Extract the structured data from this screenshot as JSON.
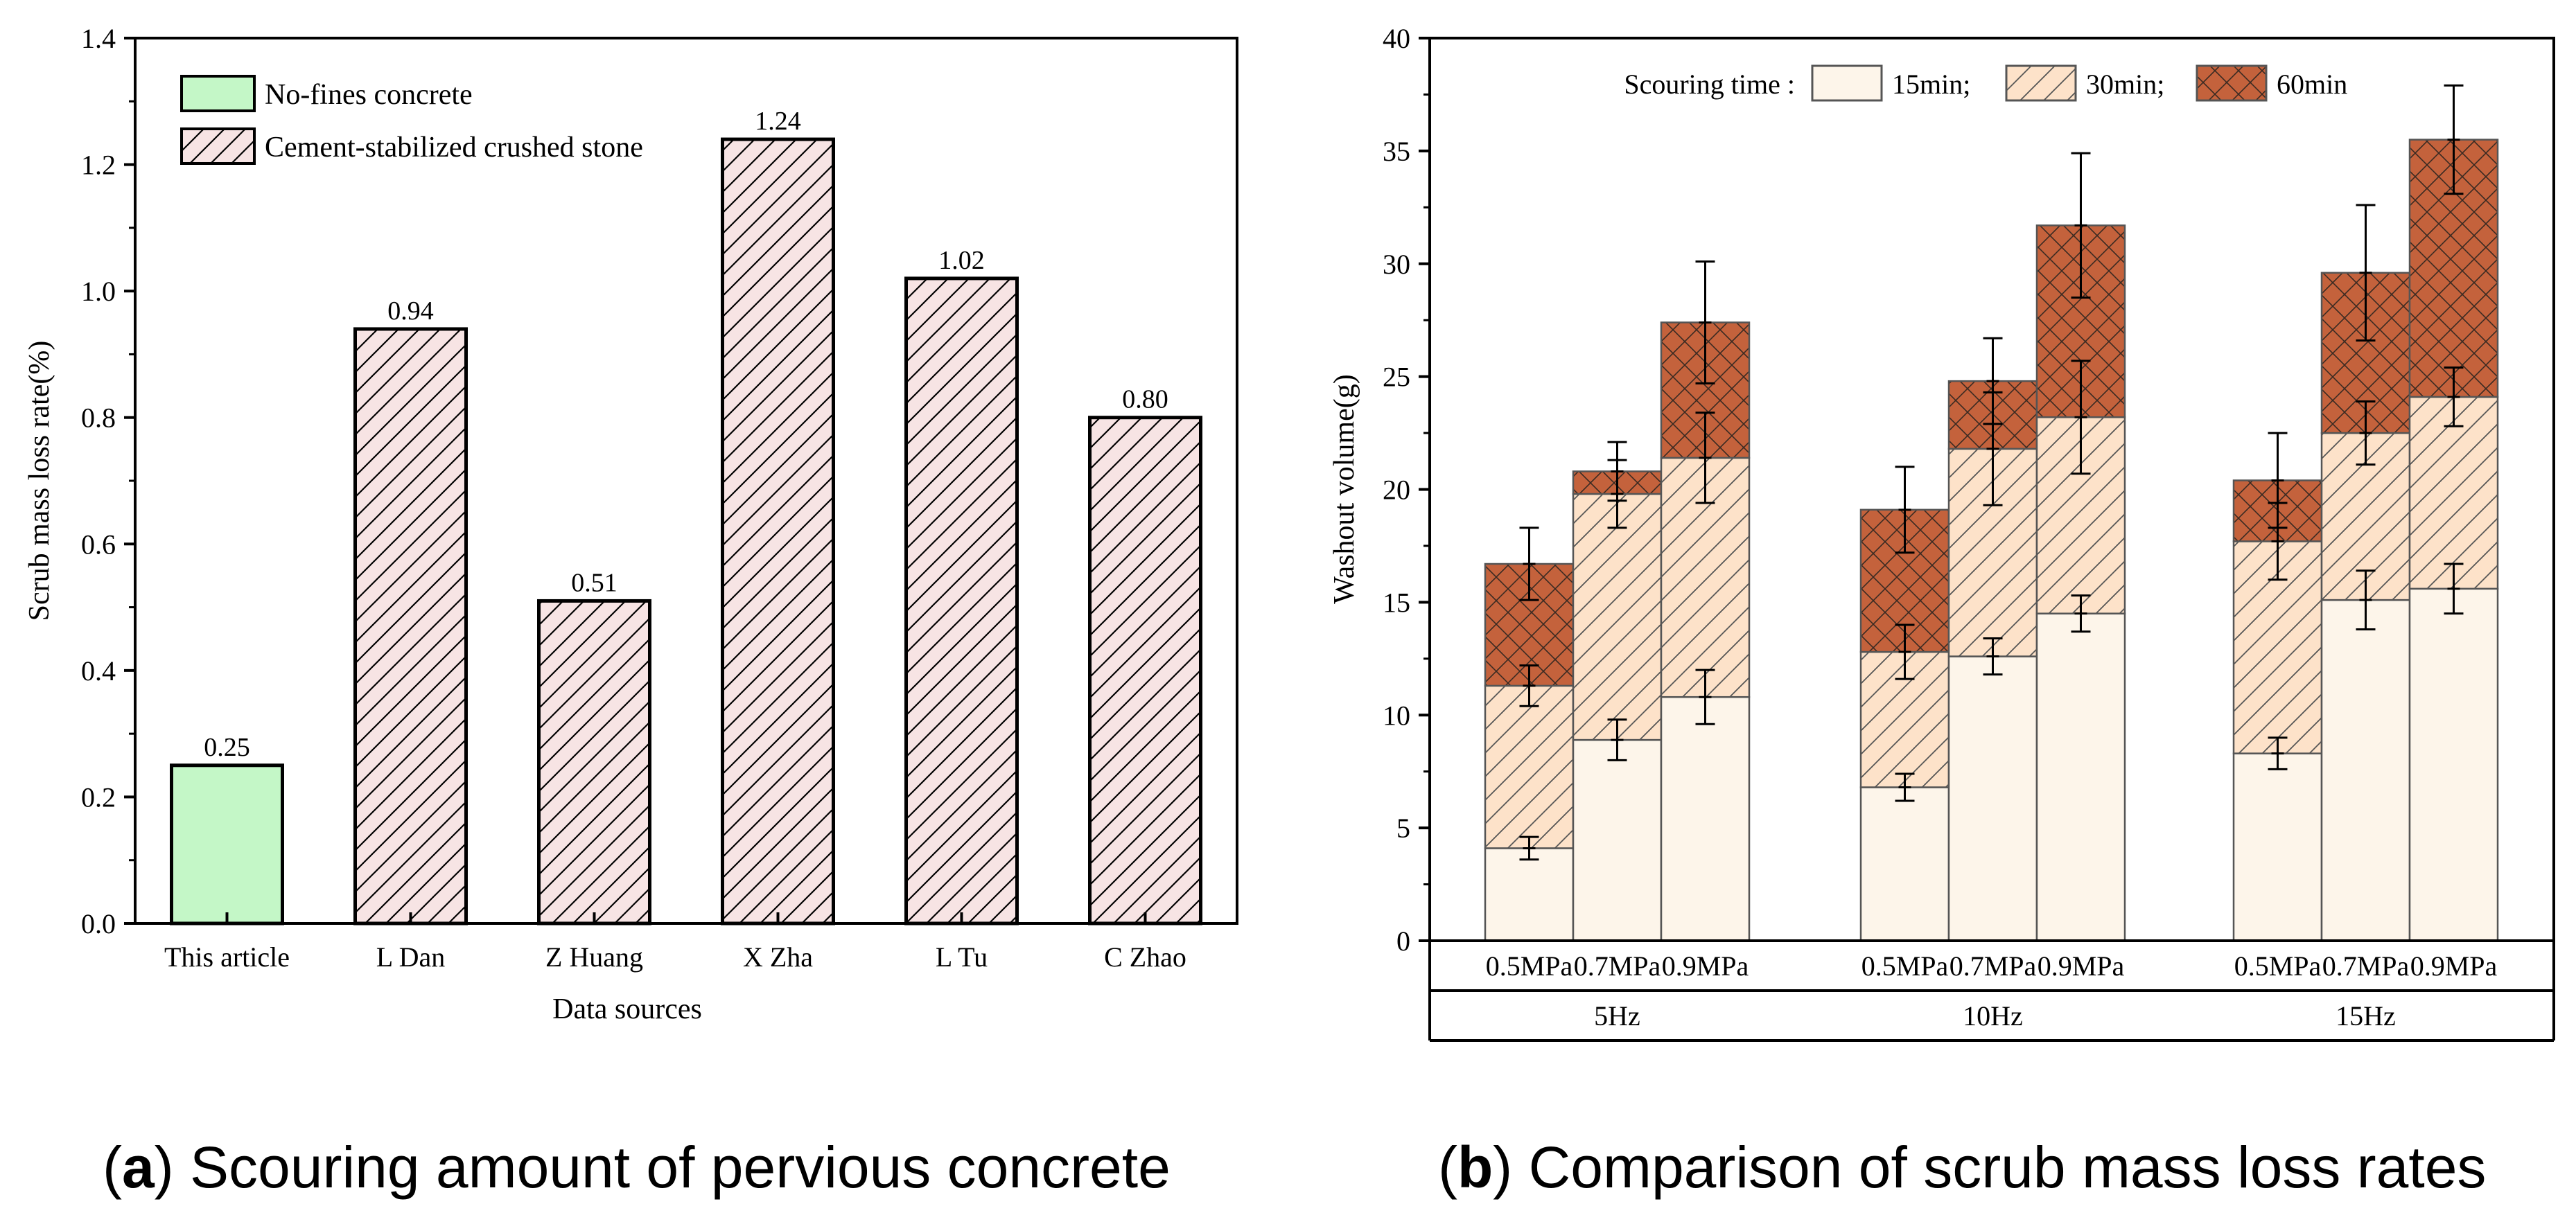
{
  "chart_data": [
    {
      "type": "bar",
      "title": "",
      "xlabel": "Data sources",
      "ylabel": "Scrub mass loss rate(%)",
      "ylim": [
        0,
        1.4
      ],
      "yticks": [
        "0.0",
        "0.2",
        "0.4",
        "0.6",
        "0.8",
        "1.0",
        "1.2",
        "1.4"
      ],
      "categories": [
        "This article",
        "L Dan",
        "Z Huang",
        "X Zha",
        "L Tu",
        "C Zhao"
      ],
      "values": [
        0.25,
        0.94,
        0.51,
        1.24,
        1.02,
        0.8
      ],
      "value_labels": [
        "0.25",
        "0.94",
        "0.51",
        "1.24",
        "1.02",
        "0.80"
      ],
      "bar_groups": [
        "No-fines concrete",
        "Cement-stabilized crushed stone",
        "Cement-stabilized crushed stone",
        "Cement-stabilized crushed stone",
        "Cement-stabilized crushed stone",
        "Cement-stabilized crushed stone"
      ],
      "legend": [
        {
          "label": "No-fines concrete",
          "color": "#c4f7c7",
          "hatch": false
        },
        {
          "label": "Cement-stabilized crushed stone",
          "color": "#f7e4e4",
          "hatch": true
        }
      ],
      "legend_position": "top-left",
      "caption_label": "a",
      "caption_text": "Scouring amount of pervious concrete"
    },
    {
      "type": "stacked-bar",
      "title": "",
      "xlabel": "",
      "ylabel": "Washout volume(g)",
      "ylim": [
        0,
        40
      ],
      "yticks": [
        "0",
        "5",
        "10",
        "15",
        "20",
        "25",
        "30",
        "35",
        "40"
      ],
      "categories": [
        "0.5MPa",
        "0.7MPa",
        "0.9MPa",
        "0.5MPa",
        "0.7MPa",
        "0.9MPa",
        "0.5MPa",
        "0.7MPa",
        "0.9MPa"
      ],
      "groups": [
        "5Hz",
        "10Hz",
        "15Hz"
      ],
      "legend_title": "Scouring time :",
      "series": [
        {
          "name": "15min;",
          "color": "#fdf5ea",
          "values": [
            4.1,
            8.9,
            10.8,
            6.8,
            12.6,
            14.5,
            8.3,
            15.1,
            15.6
          ],
          "errors": [
            0.5,
            0.9,
            1.2,
            0.6,
            0.8,
            0.8,
            0.7,
            1.3,
            1.1
          ]
        },
        {
          "name": "30min;",
          "color": "#fde2c9",
          "values": [
            7.2,
            10.9,
            10.6,
            6.0,
            9.2,
            8.7,
            9.4,
            7.4,
            8.5
          ],
          "errors": [
            0.9,
            1.5,
            2.0,
            1.2,
            2.5,
            2.5,
            1.7,
            1.4,
            1.3
          ]
        },
        {
          "name": "60min",
          "color": "#c4623c",
          "values": [
            5.4,
            1.0,
            6.0,
            6.3,
            3.0,
            8.5,
            2.7,
            7.1,
            11.4
          ],
          "errors": [
            1.6,
            1.3,
            2.7,
            1.9,
            1.9,
            3.2,
            2.1,
            3.0,
            2.4
          ]
        }
      ],
      "legend_position": "top",
      "caption_label": "b",
      "caption_text": "Comparison of scrub mass loss rates"
    }
  ]
}
